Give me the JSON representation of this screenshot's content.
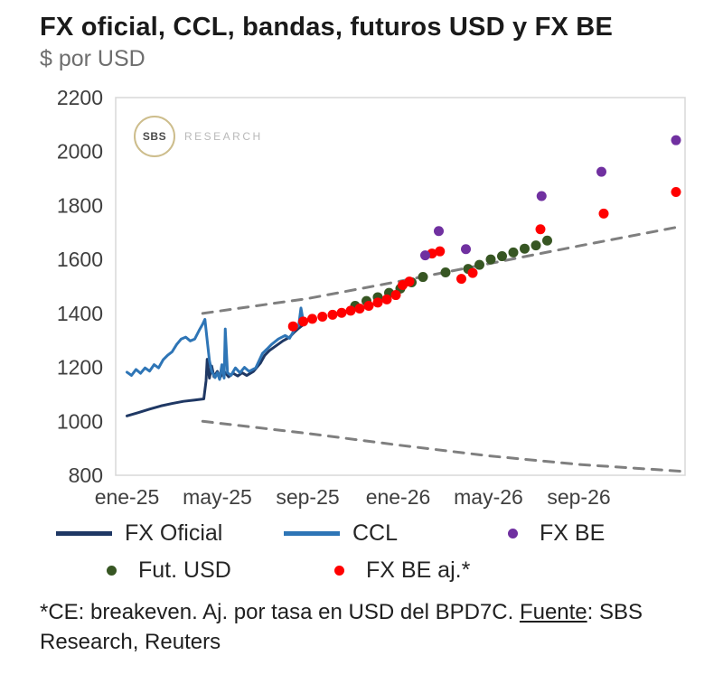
{
  "header": {
    "title": "FX oficial, CCL, bandas, futuros USD y FX BE",
    "subtitle": "$ por USD"
  },
  "watermark": {
    "circle_text": "SBS",
    "label": "RESEARCH"
  },
  "chart_data": {
    "type": "line",
    "title": "FX oficial, CCL, bandas, futuros USD y FX BE",
    "ylabel": "$ por USD",
    "xlabel": "",
    "x_unit": "months since ene-25",
    "xlim": [
      -0.5,
      24.7
    ],
    "ylim": [
      800,
      2200
    ],
    "grid": false,
    "legend_position": "bottom",
    "y_ticks": [
      800,
      1000,
      1200,
      1400,
      1600,
      1800,
      2000,
      2200
    ],
    "x_ticks": [
      {
        "x": 0,
        "label": "ene-25"
      },
      {
        "x": 4,
        "label": "may-25"
      },
      {
        "x": 8,
        "label": "sep-25"
      },
      {
        "x": 12,
        "label": "ene-26"
      },
      {
        "x": 16,
        "label": "may-26"
      },
      {
        "x": 20,
        "label": "sep-26"
      }
    ],
    "series": [
      {
        "name": "Banda superior",
        "type": "dashed-line",
        "color": "#7f7f7f",
        "width": 3,
        "points": [
          [
            3.35,
            1400
          ],
          [
            8,
            1455
          ],
          [
            12,
            1518
          ],
          [
            16,
            1584
          ],
          [
            20,
            1650
          ],
          [
            24.5,
            1722
          ]
        ]
      },
      {
        "name": "Banda inferior",
        "type": "dashed-line",
        "color": "#7f7f7f",
        "width": 3,
        "points": [
          [
            3.35,
            1000
          ],
          [
            8,
            955
          ],
          [
            12,
            912
          ],
          [
            16,
            872
          ],
          [
            20,
            840
          ],
          [
            24.5,
            815
          ]
        ]
      },
      {
        "name": "FX Oficial",
        "type": "line",
        "color": "#1f3864",
        "width": 3,
        "points": [
          [
            0,
            1020
          ],
          [
            0.5,
            1032
          ],
          [
            1,
            1045
          ],
          [
            1.5,
            1057
          ],
          [
            2,
            1066
          ],
          [
            2.5,
            1074
          ],
          [
            3,
            1079
          ],
          [
            3.4,
            1083
          ],
          [
            3.5,
            1150
          ],
          [
            3.55,
            1230
          ],
          [
            3.65,
            1160
          ],
          [
            3.75,
            1205
          ],
          [
            3.85,
            1165
          ],
          [
            4.0,
            1185
          ],
          [
            4.1,
            1160
          ],
          [
            4.3,
            1185
          ],
          [
            4.5,
            1165
          ],
          [
            4.7,
            1178
          ],
          [
            4.9,
            1168
          ],
          [
            5.1,
            1180
          ],
          [
            5.3,
            1170
          ],
          [
            5.6,
            1185
          ],
          [
            5.9,
            1215
          ],
          [
            6.1,
            1245
          ],
          [
            6.3,
            1262
          ],
          [
            6.6,
            1280
          ],
          [
            6.9,
            1298
          ],
          [
            7.2,
            1312
          ],
          [
            7.4,
            1330
          ],
          [
            7.6,
            1345
          ],
          [
            7.8,
            1358
          ]
        ]
      },
      {
        "name": "CCL",
        "type": "line",
        "color": "#2e75b6",
        "width": 3,
        "points": [
          [
            0,
            1182
          ],
          [
            0.2,
            1170
          ],
          [
            0.4,
            1192
          ],
          [
            0.6,
            1178
          ],
          [
            0.8,
            1198
          ],
          [
            1.0,
            1186
          ],
          [
            1.2,
            1210
          ],
          [
            1.4,
            1198
          ],
          [
            1.6,
            1228
          ],
          [
            1.8,
            1245
          ],
          [
            2.0,
            1258
          ],
          [
            2.2,
            1285
          ],
          [
            2.4,
            1305
          ],
          [
            2.6,
            1312
          ],
          [
            2.8,
            1298
          ],
          [
            3.0,
            1305
          ],
          [
            3.2,
            1338
          ],
          [
            3.35,
            1360
          ],
          [
            3.45,
            1378
          ],
          [
            3.55,
            1300
          ],
          [
            3.65,
            1225
          ],
          [
            3.75,
            1185
          ],
          [
            3.9,
            1162
          ],
          [
            4.0,
            1180
          ],
          [
            4.1,
            1155
          ],
          [
            4.2,
            1210
          ],
          [
            4.3,
            1160
          ],
          [
            4.35,
            1342
          ],
          [
            4.45,
            1180
          ],
          [
            4.6,
            1170
          ],
          [
            4.8,
            1198
          ],
          [
            5.0,
            1180
          ],
          [
            5.2,
            1200
          ],
          [
            5.4,
            1185
          ],
          [
            5.7,
            1198
          ],
          [
            6.0,
            1252
          ],
          [
            6.2,
            1268
          ],
          [
            6.4,
            1285
          ],
          [
            6.7,
            1305
          ],
          [
            7.0,
            1318
          ],
          [
            7.2,
            1308
          ],
          [
            7.4,
            1338
          ],
          [
            7.6,
            1355
          ],
          [
            7.7,
            1420
          ],
          [
            7.8,
            1372
          ]
        ]
      },
      {
        "name": "Fut. USD",
        "type": "scatter",
        "color": "#375623",
        "points": [
          [
            10.1,
            1428
          ],
          [
            10.6,
            1446
          ],
          [
            11.1,
            1460
          ],
          [
            11.6,
            1476
          ],
          [
            12.1,
            1492
          ],
          [
            12.6,
            1515
          ],
          [
            13.1,
            1535
          ],
          [
            14.1,
            1552
          ],
          [
            15.1,
            1565
          ],
          [
            15.6,
            1580
          ],
          [
            16.1,
            1600
          ],
          [
            16.6,
            1612
          ],
          [
            17.1,
            1626
          ],
          [
            17.6,
            1640
          ],
          [
            18.1,
            1652
          ],
          [
            18.6,
            1670
          ]
        ]
      },
      {
        "name": "FX BE aj.*",
        "type": "scatter",
        "color": "#ff0000",
        "points": [
          [
            7.35,
            1352
          ],
          [
            7.8,
            1370
          ],
          [
            8.2,
            1380
          ],
          [
            8.65,
            1388
          ],
          [
            9.1,
            1395
          ],
          [
            9.5,
            1402
          ],
          [
            9.9,
            1410
          ],
          [
            10.3,
            1418
          ],
          [
            10.7,
            1428
          ],
          [
            11.1,
            1440
          ],
          [
            11.5,
            1452
          ],
          [
            11.9,
            1468
          ],
          [
            12.2,
            1505
          ],
          [
            12.5,
            1518
          ],
          [
            13.5,
            1622
          ],
          [
            13.85,
            1630
          ],
          [
            14.8,
            1528
          ],
          [
            15.3,
            1550
          ],
          [
            18.3,
            1712
          ],
          [
            21.1,
            1770
          ],
          [
            24.3,
            1850
          ]
        ]
      },
      {
        "name": "FX BE",
        "type": "scatter",
        "color": "#7030a0",
        "points": [
          [
            13.2,
            1615
          ],
          [
            13.8,
            1705
          ],
          [
            15.0,
            1638
          ],
          [
            18.35,
            1835
          ],
          [
            21.0,
            1925
          ],
          [
            24.3,
            2042
          ]
        ]
      }
    ]
  },
  "legend": {
    "items": [
      {
        "label": "FX Oficial",
        "swatch": "line",
        "color": "#1f3864"
      },
      {
        "label": "CCL",
        "swatch": "line",
        "color": "#2e75b6"
      },
      {
        "label": "FX BE",
        "swatch": "dot",
        "color": "#7030a0"
      },
      {
        "label": "Fut. USD",
        "swatch": "dot",
        "color": "#375623"
      },
      {
        "label": "FX BE aj.*",
        "swatch": "dot",
        "color": "#ff0000"
      }
    ]
  },
  "footnote": {
    "part1": "*CE: breakeven. Aj. por tasa en USD del BPD7C. ",
    "fuente": "Fuente",
    "part2": ": SBS Research, Reuters"
  }
}
